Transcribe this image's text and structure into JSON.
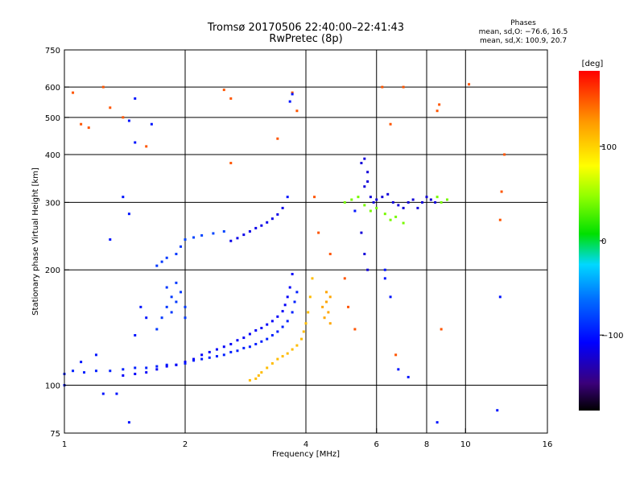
{
  "header": {
    "title_line1": "Tromsø 20170506 22:40:00–22:41:43",
    "title_line2": "RwPretec (8p)",
    "stats_heading": "Phases",
    "stats_o": "mean, sd,O: −76.6, 16.5",
    "stats_x": "mean, sd,X: 100.9, 20.7"
  },
  "colorbar": {
    "label": "[deg]",
    "range": [
      -180,
      180
    ],
    "ticks": [
      {
        "value": 100,
        "label": "100"
      },
      {
        "value": 0,
        "label": "0"
      },
      {
        "value": -100,
        "label": "−100"
      }
    ]
  },
  "chart_data": {
    "type": "scatter",
    "xlabel": "Frequency [MHz]",
    "ylabel": "Stationary phase Virtual Height [km]",
    "xscale": "log",
    "yscale": "log",
    "xlim": [
      1,
      16
    ],
    "ylim": [
      75,
      750
    ],
    "grid": true,
    "x_ticks": [
      {
        "value": 1,
        "label": "1"
      },
      {
        "value": 2,
        "label": "2"
      },
      {
        "value": 4,
        "label": "4"
      },
      {
        "value": 6,
        "label": "6"
      },
      {
        "value": 8,
        "label": "8"
      },
      {
        "value": 10,
        "label": "10"
      },
      {
        "value": 16,
        "label": "16"
      }
    ],
    "x_gridlines": [
      2,
      4,
      6,
      8,
      10
    ],
    "y_ticks": [
      {
        "value": 75,
        "label": "75"
      },
      {
        "value": 100,
        "label": "100"
      },
      {
        "value": 200,
        "label": "200"
      },
      {
        "value": 300,
        "label": "300"
      },
      {
        "value": 400,
        "label": "400"
      },
      {
        "value": 500,
        "label": "500"
      },
      {
        "value": 600,
        "label": "600"
      },
      {
        "value": 750,
        "label": "750"
      }
    ],
    "y_gridlines": [
      100,
      200,
      300,
      400,
      500,
      600
    ],
    "series": [
      {
        "trace": "o-mode lower trace",
        "color_value": -95,
        "points": [
          [
            1.0,
            107
          ],
          [
            1.05,
            109
          ],
          [
            1.12,
            108
          ],
          [
            1.2,
            109
          ],
          [
            1.3,
            109
          ],
          [
            1.4,
            110
          ],
          [
            1.5,
            111
          ],
          [
            1.6,
            111
          ],
          [
            1.7,
            112
          ],
          [
            1.8,
            113
          ],
          [
            1.9,
            113
          ],
          [
            2.0,
            114
          ],
          [
            2.1,
            116
          ],
          [
            2.2,
            117
          ],
          [
            2.3,
            118
          ],
          [
            2.4,
            119
          ],
          [
            2.5,
            120
          ],
          [
            2.6,
            122
          ],
          [
            2.7,
            123
          ],
          [
            2.8,
            125
          ],
          [
            2.9,
            126
          ],
          [
            3.0,
            128
          ],
          [
            3.1,
            130
          ],
          [
            3.2,
            132
          ],
          [
            3.3,
            135
          ],
          [
            3.4,
            138
          ],
          [
            3.5,
            142
          ],
          [
            3.6,
            147
          ],
          [
            3.7,
            155
          ],
          [
            3.75,
            165
          ],
          [
            3.8,
            175
          ]
        ]
      },
      {
        "trace": "o-mode upper trace",
        "color_value": -110,
        "points": [
          [
            1.4,
            106
          ],
          [
            1.5,
            107
          ],
          [
            1.6,
            108
          ],
          [
            1.7,
            110
          ],
          [
            1.8,
            112
          ],
          [
            1.9,
            113
          ],
          [
            2.0,
            115
          ],
          [
            2.1,
            117
          ],
          [
            2.2,
            120
          ],
          [
            2.3,
            122
          ],
          [
            2.4,
            124
          ],
          [
            2.5,
            126
          ],
          [
            2.6,
            128
          ],
          [
            2.7,
            131
          ],
          [
            2.8,
            133
          ],
          [
            2.9,
            136
          ],
          [
            3.0,
            139
          ],
          [
            3.1,
            141
          ],
          [
            3.2,
            144
          ],
          [
            3.3,
            147
          ],
          [
            3.4,
            151
          ],
          [
            3.5,
            156
          ],
          [
            3.55,
            162
          ],
          [
            3.6,
            170
          ],
          [
            3.65,
            180
          ],
          [
            3.7,
            195
          ]
        ]
      },
      {
        "trace": "o-mode 2nd hop",
        "color_value": -115,
        "points": [
          [
            2.6,
            238
          ],
          [
            2.7,
            242
          ],
          [
            2.8,
            247
          ],
          [
            2.9,
            252
          ],
          [
            3.0,
            257
          ],
          [
            3.1,
            261
          ],
          [
            3.2,
            266
          ],
          [
            3.3,
            272
          ],
          [
            3.4,
            279
          ],
          [
            3.5,
            290
          ]
        ]
      },
      {
        "trace": "x-mode 2nd hop",
        "color_value": -80,
        "points": [
          [
            2.0,
            240
          ],
          [
            2.1,
            243
          ],
          [
            2.2,
            246
          ],
          [
            2.35,
            249
          ],
          [
            2.5,
            252
          ]
        ]
      },
      {
        "trace": "spread echoes near 1.8 MHz",
        "color_value": -85,
        "points": [
          [
            1.75,
            150
          ],
          [
            1.8,
            160
          ],
          [
            1.85,
            170
          ],
          [
            1.9,
            165
          ],
          [
            1.95,
            175
          ],
          [
            2.0,
            160
          ],
          [
            1.8,
            180
          ],
          [
            1.9,
            185
          ],
          [
            1.85,
            155
          ],
          [
            2.0,
            150
          ],
          [
            1.7,
            140
          ],
          [
            1.75,
            210
          ],
          [
            1.8,
            215
          ],
          [
            1.9,
            220
          ],
          [
            1.95,
            230
          ],
          [
            1.7,
            205
          ]
        ]
      },
      {
        "trace": "x-mode trace",
        "color_value": 110,
        "points": [
          [
            2.9,
            103
          ],
          [
            3.0,
            104
          ],
          [
            3.05,
            106
          ],
          [
            3.1,
            108
          ],
          [
            3.2,
            111
          ],
          [
            3.3,
            114
          ],
          [
            3.4,
            117
          ],
          [
            3.5,
            119
          ],
          [
            3.6,
            121
          ],
          [
            3.7,
            124
          ],
          [
            3.8,
            127
          ],
          [
            3.9,
            132
          ],
          [
            3.95,
            138
          ],
          [
            4.0,
            145
          ],
          [
            4.05,
            155
          ],
          [
            4.1,
            170
          ],
          [
            4.15,
            190
          ]
        ]
      },
      {
        "trace": "x-mode spread",
        "color_value": 120,
        "points": [
          [
            4.4,
            160
          ],
          [
            4.5,
            165
          ],
          [
            4.6,
            170
          ],
          [
            4.5,
            175
          ],
          [
            4.55,
            155
          ],
          [
            4.45,
            150
          ],
          [
            4.6,
            145
          ]
        ]
      },
      {
        "trace": "F-region echoes 5–9 MHz",
        "color_value": -120,
        "points": [
          [
            5.6,
            330
          ],
          [
            5.7,
            340
          ],
          [
            5.8,
            310
          ],
          [
            5.9,
            300
          ],
          [
            6.0,
            305
          ],
          [
            6.2,
            310
          ],
          [
            6.4,
            315
          ],
          [
            6.6,
            300
          ],
          [
            6.8,
            295
          ],
          [
            7.0,
            290
          ],
          [
            7.2,
            300
          ],
          [
            7.4,
            305
          ],
          [
            7.6,
            290
          ],
          [
            7.8,
            300
          ],
          [
            8.0,
            310
          ],
          [
            8.2,
            305
          ],
          [
            8.4,
            300
          ],
          [
            5.5,
            380
          ],
          [
            5.6,
            390
          ],
          [
            5.7,
            360
          ],
          [
            5.5,
            250
          ],
          [
            5.6,
            220
          ],
          [
            5.7,
            200
          ]
        ]
      },
      {
        "trace": "F-region mixed echoes",
        "color_value": 40,
        "points": [
          [
            5.0,
            300
          ],
          [
            5.2,
            305
          ],
          [
            5.4,
            310
          ],
          [
            5.6,
            295
          ],
          [
            5.8,
            285
          ],
          [
            6.0,
            290
          ],
          [
            6.3,
            280
          ],
          [
            6.5,
            270
          ],
          [
            6.7,
            275
          ],
          [
            7.0,
            265
          ],
          [
            8.5,
            310
          ],
          [
            8.7,
            300
          ],
          [
            9.0,
            305
          ]
        ]
      },
      {
        "trace": "scattered noise",
        "color_value": 150,
        "points": [
          [
            1.05,
            580
          ],
          [
            1.1,
            480
          ],
          [
            1.15,
            470
          ],
          [
            1.25,
            600
          ],
          [
            1.3,
            530
          ],
          [
            1.4,
            500
          ],
          [
            1.6,
            420
          ],
          [
            2.5,
            590
          ],
          [
            2.6,
            560
          ],
          [
            2.6,
            380
          ],
          [
            3.4,
            440
          ],
          [
            3.7,
            580
          ],
          [
            3.8,
            520
          ],
          [
            4.2,
            310
          ],
          [
            4.3,
            250
          ],
          [
            4.6,
            220
          ],
          [
            5.0,
            190
          ],
          [
            5.1,
            160
          ],
          [
            5.3,
            140
          ],
          [
            6.5,
            480
          ],
          [
            6.2,
            600
          ],
          [
            7.0,
            600
          ],
          [
            8.5,
            520
          ],
          [
            8.6,
            540
          ],
          [
            10.2,
            610
          ],
          [
            12.5,
            400
          ],
          [
            12.3,
            320
          ],
          [
            12.2,
            270
          ],
          [
            8.7,
            140
          ],
          [
            6.7,
            120
          ]
        ]
      },
      {
        "trace": "scattered blue noise",
        "color_value": -100,
        "points": [
          [
            1.3,
            240
          ],
          [
            1.4,
            310
          ],
          [
            1.45,
            280
          ],
          [
            1.5,
            430
          ],
          [
            1.45,
            490
          ],
          [
            1.5,
            560
          ],
          [
            1.65,
            480
          ],
          [
            1.55,
            160
          ],
          [
            1.6,
            150
          ],
          [
            1.5,
            135
          ],
          [
            1.25,
            95
          ],
          [
            1.35,
            95
          ],
          [
            1.45,
            80
          ],
          [
            3.7,
            575
          ],
          [
            3.65,
            550
          ],
          [
            3.6,
            310
          ],
          [
            5.3,
            285
          ],
          [
            6.3,
            190
          ],
          [
            6.5,
            170
          ],
          [
            6.8,
            110
          ],
          [
            7.2,
            105
          ],
          [
            8.5,
            80
          ],
          [
            12.0,
            86
          ],
          [
            12.2,
            170
          ],
          [
            6.3,
            200
          ],
          [
            1.2,
            120
          ],
          [
            1.1,
            115
          ],
          [
            1.0,
            100
          ]
        ]
      }
    ]
  }
}
